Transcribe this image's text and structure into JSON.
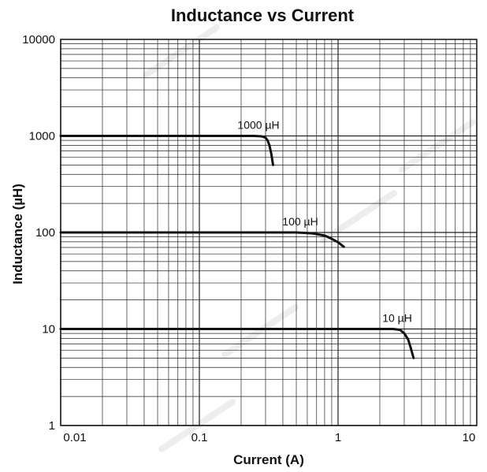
{
  "chart_data": {
    "type": "line",
    "title": "Inductance vs Current",
    "xlabel": "Current (A)",
    "ylabel": "Inductance (µH)",
    "x_scale": "log",
    "y_scale": "log",
    "xlim": [
      0.01,
      10
    ],
    "ylim": [
      1,
      10000
    ],
    "x_ticks": [
      0.01,
      0.1,
      1,
      10
    ],
    "x_tick_labels": [
      "0.01",
      "0.1",
      "1",
      "10"
    ],
    "y_ticks": [
      1,
      10,
      100,
      1000,
      10000
    ],
    "y_tick_labels": [
      "1",
      "10",
      "100",
      "1000",
      "10000"
    ],
    "grid": true,
    "series": [
      {
        "name": "1000 µH",
        "x": [
          0.01,
          0.25,
          0.28,
          0.3,
          0.31,
          0.32,
          0.33,
          0.34
        ],
        "y": [
          1000,
          1000,
          990,
          960,
          900,
          800,
          650,
          500
        ]
      },
      {
        "name": "100 µH",
        "x": [
          0.01,
          0.5,
          0.65,
          0.8,
          0.9,
          1.0,
          1.1
        ],
        "y": [
          100,
          100,
          98,
          93,
          86,
          79,
          71
        ]
      },
      {
        "name": "10 µH",
        "x": [
          0.01,
          2.5,
          2.8,
          3.0,
          3.2,
          3.35,
          3.5
        ],
        "y": [
          10,
          10,
          9.8,
          9.0,
          7.8,
          6.3,
          5.0
        ]
      }
    ]
  }
}
